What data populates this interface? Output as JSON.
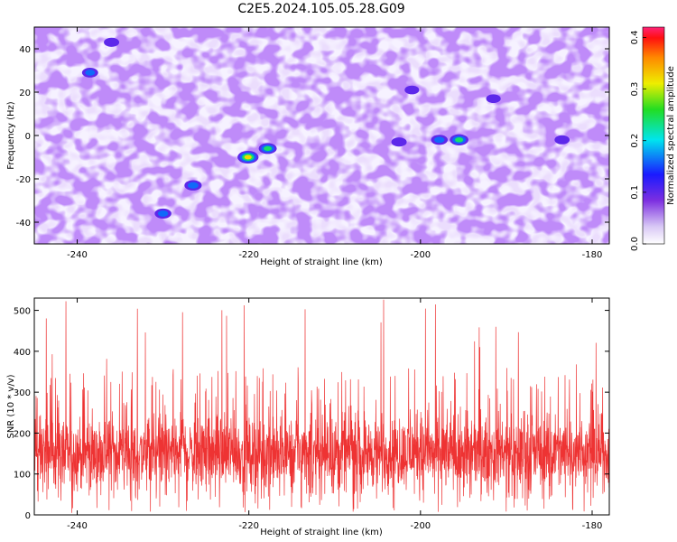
{
  "title": "C2E5.2024.105.05.28.G09",
  "chart_data": [
    {
      "type": "heatmap",
      "xlabel": "Height of straight line (km)",
      "ylabel": "Frequency (Hz)",
      "xlim": [
        -245,
        -178
      ],
      "ylim": [
        -50,
        50
      ],
      "xticks": [
        -240,
        -220,
        -200,
        -180
      ],
      "yticks": [
        -40,
        -20,
        0,
        20,
        40
      ],
      "colorbar": {
        "label": "Normalized spectral amplitude",
        "range": [
          0,
          0.42
        ],
        "ticks": [
          0.0,
          0.1,
          0.2,
          0.3,
          0.4
        ]
      },
      "hotspots": [
        {
          "x": -220.1,
          "y": -10,
          "value": 0.36
        },
        {
          "x": -217.8,
          "y": -6,
          "value": 0.25
        },
        {
          "x": -195.5,
          "y": -2,
          "value": 0.27
        },
        {
          "x": -197.8,
          "y": -2,
          "value": 0.2
        },
        {
          "x": -226.5,
          "y": -23,
          "value": 0.22
        },
        {
          "x": -230.0,
          "y": -36,
          "value": 0.2
        },
        {
          "x": -238.5,
          "y": 29,
          "value": 0.18
        },
        {
          "x": -236.0,
          "y": 43,
          "value": 0.15
        },
        {
          "x": -202.5,
          "y": -3,
          "value": 0.15
        },
        {
          "x": -183.5,
          "y": -2,
          "value": 0.14
        },
        {
          "x": -201.0,
          "y": 21,
          "value": 0.12
        },
        {
          "x": -191.5,
          "y": 17,
          "value": 0.12
        }
      ],
      "grid": false
    },
    {
      "type": "line",
      "xlabel": "Height of straight line (km)",
      "ylabel": "SNR (10 * v/v)",
      "xlim": [
        -245,
        -178
      ],
      "ylim": [
        0,
        530
      ],
      "xticks": [
        -240,
        -220,
        -200,
        -180
      ],
      "yticks": [
        0,
        100,
        200,
        300,
        400,
        500
      ],
      "series": [
        {
          "color": "#ee3333",
          "baseline": 150,
          "spread": 60,
          "peak_max": 530
        }
      ],
      "grid": false
    }
  ]
}
